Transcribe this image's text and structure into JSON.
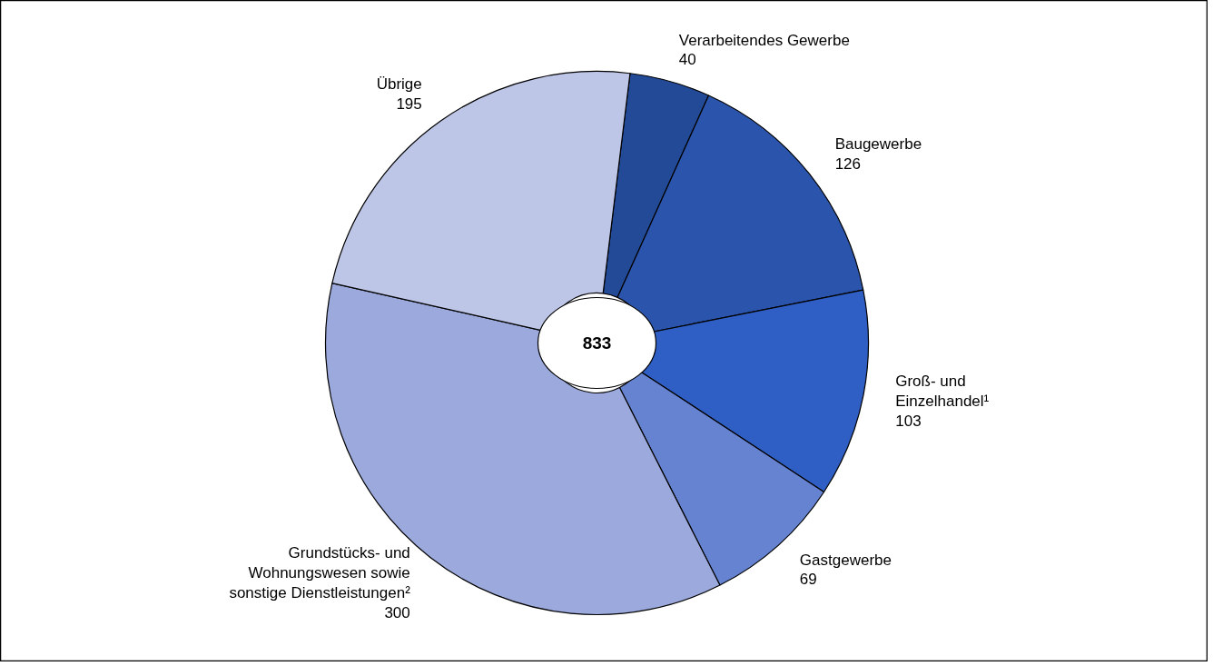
{
  "chart_data": {
    "type": "donut",
    "categories": [
      "Verarbeitendes Gewerbe",
      "Baugewerbe",
      "Groß- und\nEinzelhandel¹",
      "Gastgewerbe",
      "Grundstücks- und\nWohnungswesen sowie\nsonstige Dienstleistungen²",
      "Übrige"
    ],
    "values": [
      40,
      126,
      103,
      69,
      300,
      195
    ],
    "colors": [
      "#234a96",
      "#2b55ad",
      "#2f5fc4",
      "#6683d1",
      "#9ba9dc",
      "#bec6e8"
    ],
    "data_labels": true,
    "annotations": [
      "833"
    ]
  }
}
